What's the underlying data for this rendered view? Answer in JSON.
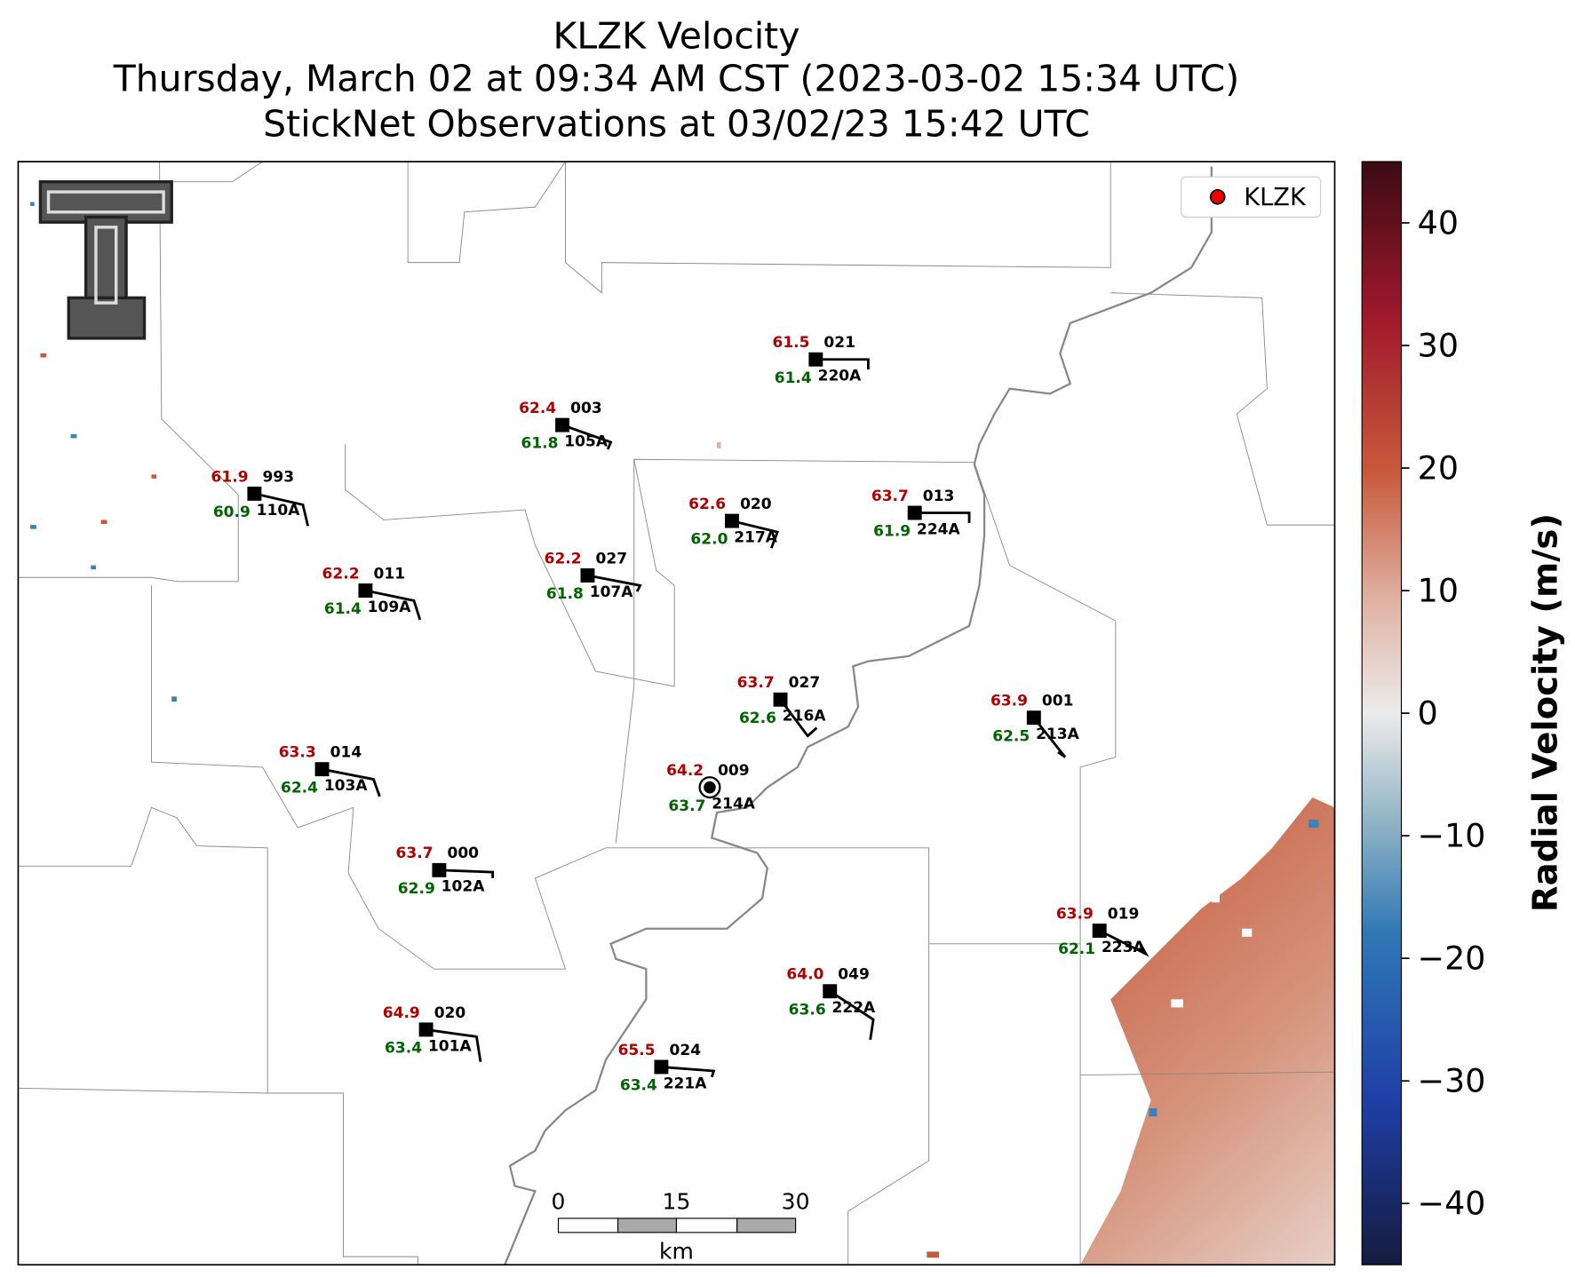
{
  "title": [
    "KLZK Velocity",
    "Thursday, March 02 at 09:34 AM CST (2023-03-02 15:34 UTC)",
    "StickNet Observations at 03/02/23 15:42 UTC"
  ],
  "legend": {
    "label": "KLZK"
  },
  "colorbar": {
    "label": "Radial Velocity (m/s)",
    "lim": [
      -45,
      45
    ],
    "ticks": [
      40,
      30,
      20,
      10,
      0,
      {
        "value": -10,
        "label": "−10"
      },
      {
        "value": -20,
        "label": "−20"
      },
      {
        "value": -30,
        "label": "−30"
      },
      {
        "value": -40,
        "label": "−40"
      }
    ]
  },
  "scale_bar": {
    "ticks": [
      "0",
      "15",
      "30"
    ],
    "unit": "km"
  },
  "stations": [
    {
      "id": "220A",
      "temperature": "61.5",
      "dewpoint": "61.4",
      "pressure": "021"
    },
    {
      "id": "105A",
      "temperature": "62.4",
      "dewpoint": "61.8",
      "pressure": "003"
    },
    {
      "id": "110A",
      "temperature": "61.9",
      "dewpoint": "60.9",
      "pressure": "993"
    },
    {
      "id": "217A",
      "temperature": "62.6",
      "dewpoint": "62.0",
      "pressure": "020"
    },
    {
      "id": "224A",
      "temperature": "63.7",
      "dewpoint": "61.9",
      "pressure": "013"
    },
    {
      "id": "107A",
      "temperature": "62.2",
      "dewpoint": "61.8",
      "pressure": "027"
    },
    {
      "id": "109A",
      "temperature": "62.2",
      "dewpoint": "61.4",
      "pressure": "011"
    },
    {
      "id": "216A",
      "temperature": "63.7",
      "dewpoint": "62.6",
      "pressure": "027"
    },
    {
      "id": "213A",
      "temperature": "63.9",
      "dewpoint": "62.5",
      "pressure": "001"
    },
    {
      "id": "103A",
      "temperature": "63.3",
      "dewpoint": "62.4",
      "pressure": "014"
    },
    {
      "id": "214A",
      "temperature": "64.2",
      "dewpoint": "63.7",
      "pressure": "009"
    },
    {
      "id": "102A",
      "temperature": "63.7",
      "dewpoint": "62.9",
      "pressure": "000"
    },
    {
      "id": "223A",
      "temperature": "63.9",
      "dewpoint": "62.1",
      "pressure": "019"
    },
    {
      "id": "222A",
      "temperature": "64.0",
      "dewpoint": "63.6",
      "pressure": "049"
    },
    {
      "id": "101A",
      "temperature": "64.9",
      "dewpoint": "63.4",
      "pressure": "020"
    },
    {
      "id": "221A",
      "temperature": "65.5",
      "dewpoint": "63.4",
      "pressure": "024"
    }
  ]
}
